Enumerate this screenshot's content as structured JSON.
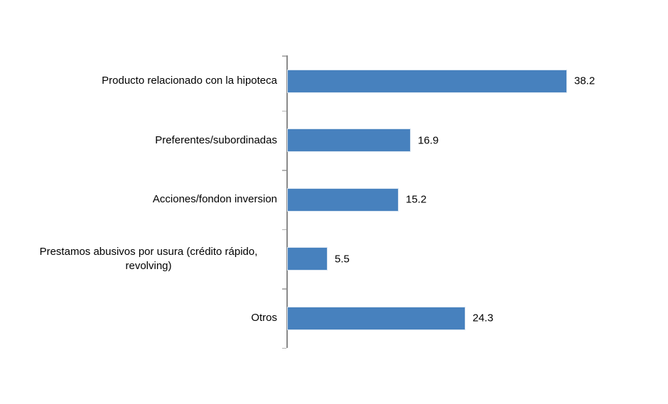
{
  "chart_data": {
    "type": "bar",
    "orientation": "horizontal",
    "title": "",
    "xlabel": "",
    "ylabel": "",
    "categories": [
      "Producto relacionado con la hipoteca",
      "Preferentes/subordinadas",
      "Acciones/fondon inversion",
      "Prestamos abusivos por usura (crédito rápido, revolving)",
      "Otros"
    ],
    "values": [
      38.2,
      16.9,
      15.2,
      5.5,
      24.3
    ],
    "xlim": [
      0,
      40
    ],
    "grid": false,
    "legend": false,
    "data_labels": true,
    "axis_position": "left",
    "background": "#ffffff",
    "colors": {
      "bar": "#4781be",
      "bar_border": "#d8e4f0",
      "axis": "#8a8a8a",
      "tick": "#b3b3b3",
      "text": "#000000"
    }
  }
}
